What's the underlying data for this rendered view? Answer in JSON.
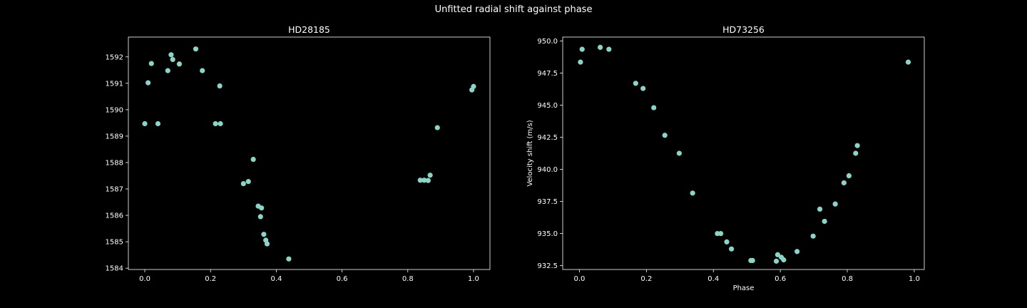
{
  "figure": {
    "title": "Unfitted radial shift against phase"
  },
  "chart_data": [
    {
      "type": "scatter",
      "title": "HD28185",
      "xlabel": "",
      "ylabel": "",
      "xlim": [
        -0.05,
        1.05
      ],
      "ylim": [
        1583.95,
        1592.75
      ],
      "xticks": [
        0.0,
        0.2,
        0.4,
        0.6,
        0.8,
        1.0
      ],
      "xtick_labels": [
        "0.0",
        "0.2",
        "0.4",
        "0.6",
        "0.8",
        "1.0"
      ],
      "yticks": [
        1584,
        1585,
        1586,
        1587,
        1588,
        1589,
        1590,
        1591,
        1592
      ],
      "ytick_labels": [
        "1584",
        "1585",
        "1586",
        "1587",
        "1588",
        "1589",
        "1590",
        "1591",
        "1592"
      ],
      "marker_color": "#8dd3c7",
      "points": [
        [
          0.0,
          1589.47
        ],
        [
          0.01,
          1591.02
        ],
        [
          0.02,
          1591.75
        ],
        [
          0.04,
          1589.47
        ],
        [
          0.07,
          1591.48
        ],
        [
          0.08,
          1592.08
        ],
        [
          0.085,
          1591.9
        ],
        [
          0.105,
          1591.73
        ],
        [
          0.155,
          1592.3
        ],
        [
          0.175,
          1591.48
        ],
        [
          0.215,
          1589.47
        ],
        [
          0.23,
          1589.47
        ],
        [
          0.228,
          1590.9
        ],
        [
          0.3,
          1587.2
        ],
        [
          0.315,
          1587.28
        ],
        [
          0.33,
          1588.12
        ],
        [
          0.345,
          1586.35
        ],
        [
          0.355,
          1586.28
        ],
        [
          0.352,
          1585.95
        ],
        [
          0.362,
          1585.28
        ],
        [
          0.368,
          1585.06
        ],
        [
          0.372,
          1584.92
        ],
        [
          0.438,
          1584.35
        ],
        [
          0.838,
          1587.33
        ],
        [
          0.85,
          1587.33
        ],
        [
          0.862,
          1587.32
        ],
        [
          0.868,
          1587.52
        ],
        [
          0.89,
          1589.32
        ],
        [
          0.995,
          1590.75
        ],
        [
          1.0,
          1590.88
        ]
      ]
    },
    {
      "type": "scatter",
      "title": "HD73256",
      "xlabel": "Phase",
      "ylabel": "Velocity shift (m/s)",
      "xlim": [
        -0.05,
        1.03
      ],
      "ylim": [
        932.2,
        950.3
      ],
      "xticks": [
        0.0,
        0.2,
        0.4,
        0.6,
        0.8,
        1.0
      ],
      "xtick_labels": [
        "0.0",
        "0.2",
        "0.4",
        "0.6",
        "0.8",
        "1.0"
      ],
      "yticks": [
        932.5,
        935.0,
        937.5,
        940.0,
        942.5,
        945.0,
        947.5,
        950.0
      ],
      "ytick_labels": [
        "932.5",
        "935.0",
        "937.5",
        "940.0",
        "942.5",
        "945.0",
        "947.5",
        "950.0"
      ],
      "marker_color": "#8dd3c7",
      "points": [
        [
          0.003,
          948.35
        ],
        [
          0.008,
          949.35
        ],
        [
          0.062,
          949.5
        ],
        [
          0.088,
          949.35
        ],
        [
          0.168,
          946.7
        ],
        [
          0.19,
          946.3
        ],
        [
          0.222,
          944.8
        ],
        [
          0.255,
          942.65
        ],
        [
          0.298,
          941.25
        ],
        [
          0.338,
          938.15
        ],
        [
          0.412,
          935.0
        ],
        [
          0.422,
          935.0
        ],
        [
          0.44,
          934.35
        ],
        [
          0.454,
          933.8
        ],
        [
          0.512,
          932.9
        ],
        [
          0.517,
          932.9
        ],
        [
          0.588,
          932.85
        ],
        [
          0.592,
          933.35
        ],
        [
          0.603,
          933.15
        ],
        [
          0.61,
          932.95
        ],
        [
          0.65,
          933.6
        ],
        [
          0.698,
          934.8
        ],
        [
          0.718,
          936.9
        ],
        [
          0.732,
          935.95
        ],
        [
          0.764,
          937.3
        ],
        [
          0.79,
          938.95
        ],
        [
          0.805,
          939.5
        ],
        [
          0.825,
          941.25
        ],
        [
          0.83,
          941.85
        ],
        [
          0.982,
          948.35
        ]
      ]
    }
  ]
}
